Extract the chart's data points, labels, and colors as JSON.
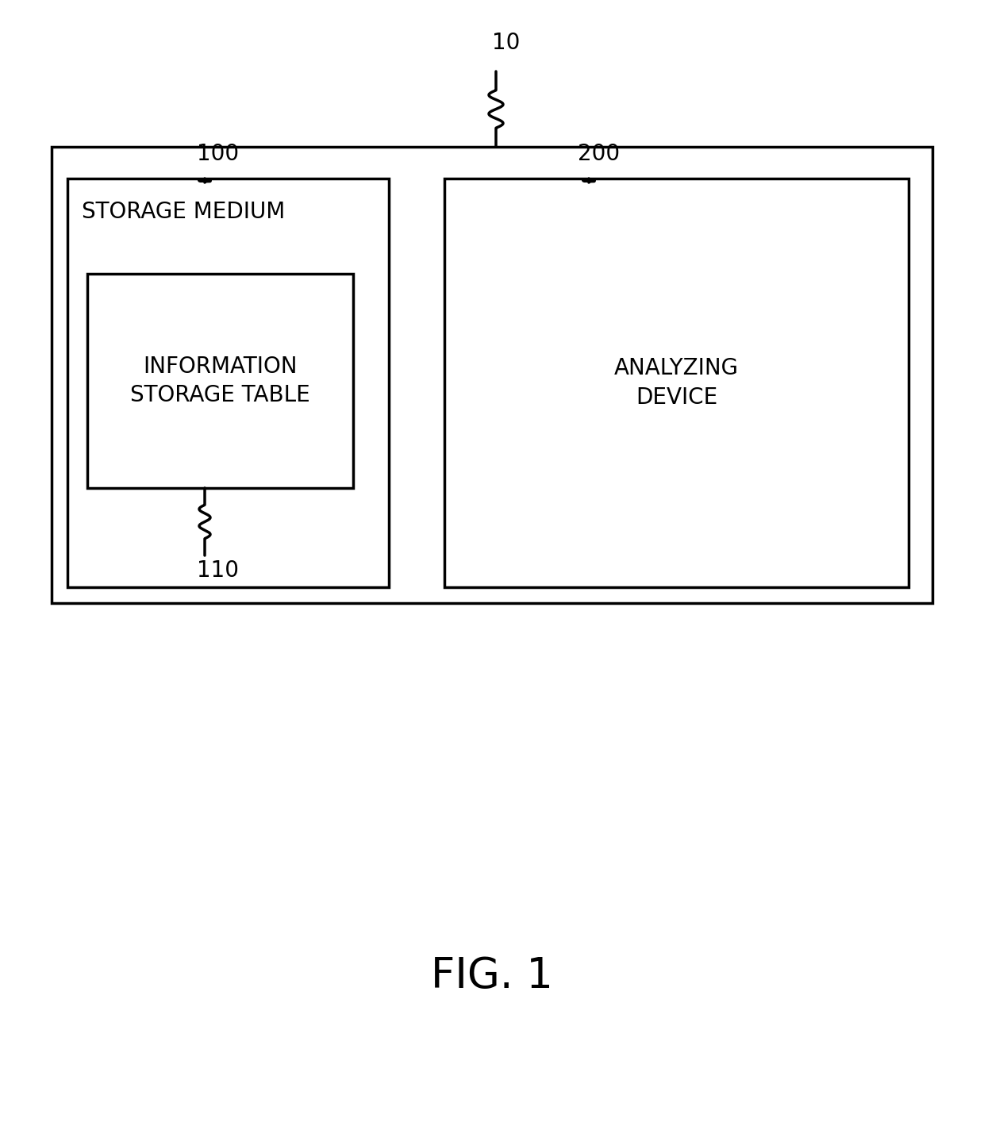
{
  "bg_color": "#ffffff",
  "line_color": "#000000",
  "fig_label": "FIG. 1",
  "fig_label_fontsize": 38,
  "label_10": "10",
  "label_100": "100",
  "label_200": "200",
  "label_110": "110",
  "storage_text": "STORAGE MEDIUM",
  "info_text": "INFORMATION\nSTORAGE TABLE",
  "analyzing_text": "ANALYZING\nDEVICE",
  "storage_fontsize": 20,
  "info_fontsize": 20,
  "analyzing_fontsize": 20,
  "ref_fontsize": 20,
  "lw": 2.5
}
